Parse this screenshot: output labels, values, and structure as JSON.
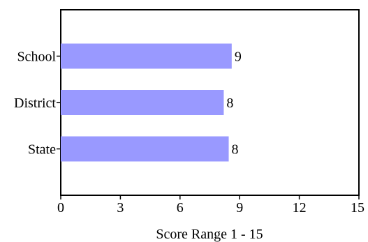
{
  "chart_data": {
    "type": "bar",
    "orientation": "horizontal",
    "categories": [
      "School",
      "District",
      "State"
    ],
    "values": [
      8.6,
      8.2,
      8.45
    ],
    "value_labels": [
      "9",
      "8",
      "8"
    ],
    "xlabel": "Score Range 1 - 15",
    "ylabel": "",
    "xlim": [
      0,
      15
    ],
    "xticks": [
      0,
      3,
      6,
      9,
      12,
      15
    ],
    "xtick_labels": [
      "0",
      "3",
      "6",
      "9",
      "12",
      "15"
    ],
    "bar_color": "#9999ff",
    "grid": false,
    "legend": "none"
  }
}
